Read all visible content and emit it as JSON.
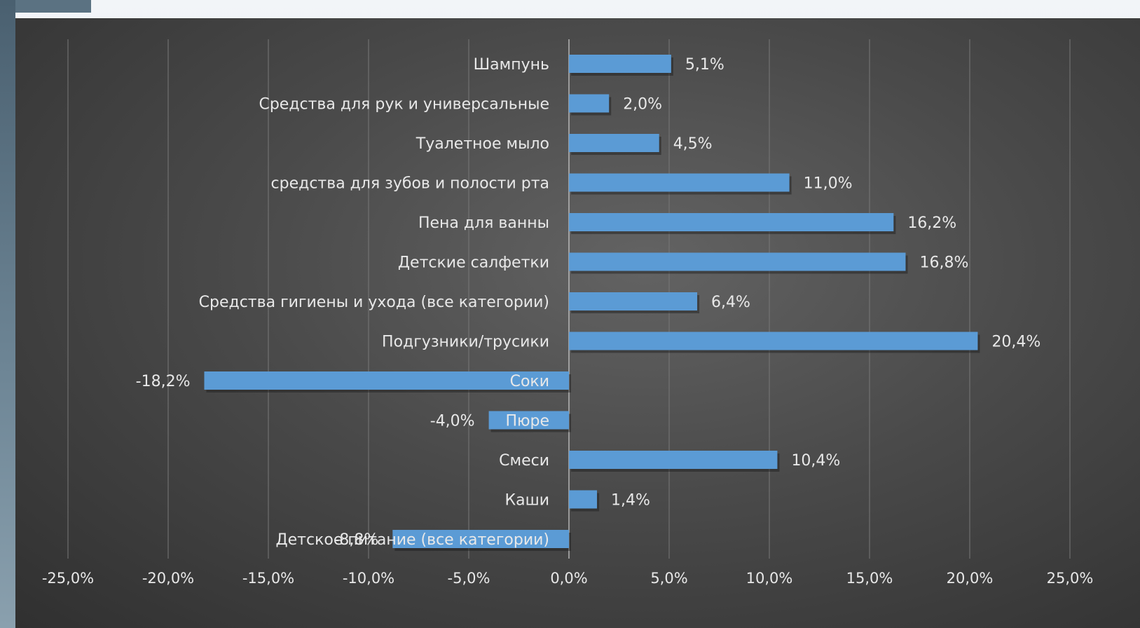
{
  "chart_data": {
    "type": "bar",
    "orientation": "horizontal",
    "categories": [
      "Шампунь",
      "Средства для рук и универсальные",
      "Туалетное мыло",
      "средства для зубов и полости рта",
      "Пена для ванны",
      "Детские салфетки",
      "Средства гигиены и ухода (все категории)",
      "Подгузники/трусики",
      "Соки",
      "Пюре",
      "Смеси",
      "Каши",
      "Детское питание (все категории)"
    ],
    "values": [
      5.1,
      2.0,
      4.5,
      11.0,
      16.2,
      16.8,
      6.4,
      20.4,
      -18.2,
      -4.0,
      10.4,
      1.4,
      -8.8
    ],
    "value_labels": [
      "5,1%",
      "2,0%",
      "4,5%",
      "11,0%",
      "16,2%",
      "16,8%",
      "6,4%",
      "20,4%",
      "-18,2%",
      "-4,0%",
      "10,4%",
      "1,4%",
      "-8,8%"
    ],
    "xlim": [
      -25,
      25
    ],
    "x_ticks": [
      -25,
      -20,
      -15,
      -10,
      -5,
      0,
      5,
      10,
      15,
      20,
      25
    ],
    "x_tick_labels": [
      "-25,0%",
      "-20,0%",
      "-15,0%",
      "-10,0%",
      "-5,0%",
      "0,0%",
      "5,0%",
      "10,0%",
      "15,0%",
      "20,0%",
      "25,0%"
    ],
    "grid": "vertical",
    "legend": "none",
    "title": "",
    "xlabel": "",
    "ylabel": "",
    "colors": {
      "bar": "#5b9bd5",
      "background": "#4a4a4a",
      "text": "#e8e8e8"
    }
  }
}
